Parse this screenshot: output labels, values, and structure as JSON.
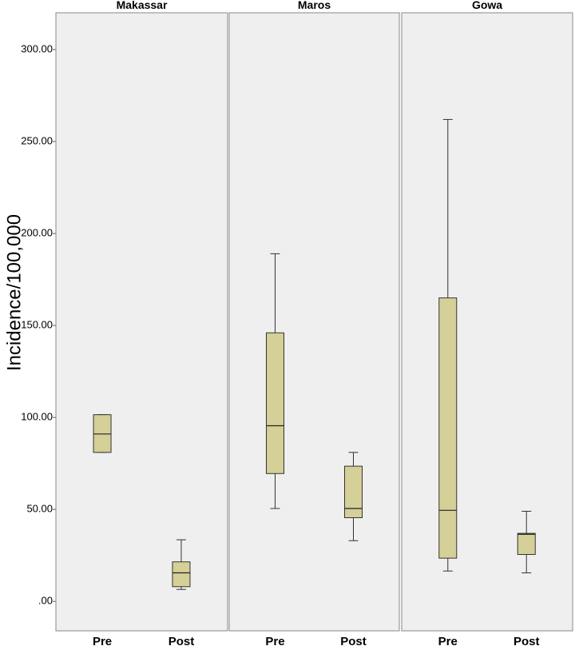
{
  "chart_data": {
    "type": "boxplot",
    "ylabel": "Incidence/100,000",
    "yticks": [
      ".00",
      "50.00",
      "100.00",
      "150.00",
      "200.00",
      "250.00",
      "300.00"
    ],
    "ylim": [
      -16,
      320
    ],
    "box_color": "#d5cf98",
    "panel_color": "#efefef",
    "categories": [
      "Pre",
      "Post"
    ],
    "facets": [
      {
        "name": "Makassar",
        "boxes": [
          {
            "category": "Pre",
            "min": 81,
            "q1": 81,
            "median": 91,
            "q3": 101.5,
            "max": 101.5
          },
          {
            "category": "Post",
            "min": 6.5,
            "q1": 8,
            "median": 15.5,
            "q3": 21.5,
            "max": 33.5
          }
        ]
      },
      {
        "name": "Maros",
        "boxes": [
          {
            "category": "Pre",
            "min": 50.5,
            "q1": 69.5,
            "median": 95.5,
            "q3": 146,
            "max": 189
          },
          {
            "category": "Post",
            "min": 33,
            "q1": 45.5,
            "median": 50.5,
            "q3": 73.5,
            "max": 81
          }
        ]
      },
      {
        "name": "Gowa",
        "boxes": [
          {
            "category": "Pre",
            "min": 16.5,
            "q1": 23.5,
            "median": 49.5,
            "q3": 165,
            "max": 262
          },
          {
            "category": "Post",
            "min": 15.5,
            "q1": 25.5,
            "median": 36.5,
            "q3": 37,
            "max": 49
          }
        ]
      }
    ]
  }
}
